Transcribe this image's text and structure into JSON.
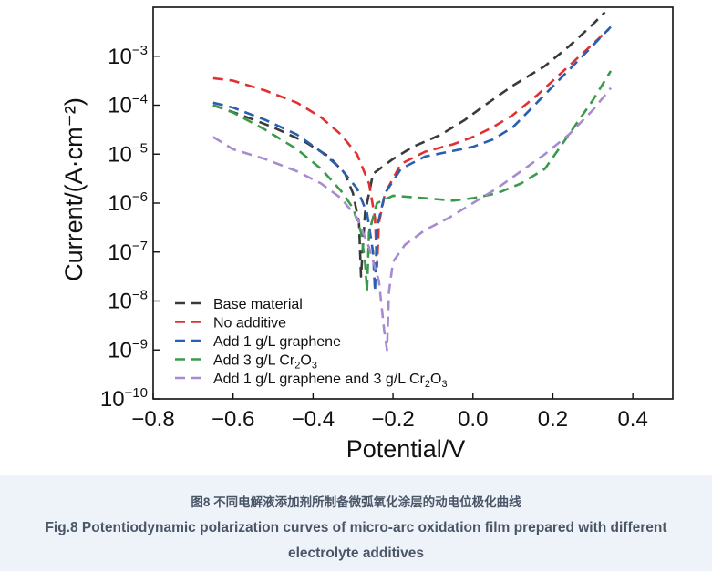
{
  "caption": {
    "cn": "图8 不同电解液添加剂所制备微弧氧化涂层的动电位极化曲线",
    "en": "Fig.8 Potentiodynamic polarization curves of micro-arc oxidation film prepared with different electrolyte additives"
  },
  "chart_data": {
    "type": "line",
    "title": "",
    "xlabel": "Potential/V",
    "ylabel": "Current/(A·cm⁻²)",
    "xlim": [
      -0.8,
      0.5
    ],
    "ylim_log10": [
      -10,
      -2
    ],
    "y_scale": "log",
    "x_ticks": [
      "−0.8",
      "−0.6",
      "−0.4",
      "−0.2",
      "0.0",
      "0.2",
      "0.4"
    ],
    "y_ticks": [
      {
        "base": "10",
        "exp": "−3",
        "value": -3
      },
      {
        "base": "10",
        "exp": "−4",
        "value": -4
      },
      {
        "base": "10",
        "exp": "−5",
        "value": -5
      },
      {
        "base": "10",
        "exp": "−6",
        "value": -6
      },
      {
        "base": "10",
        "exp": "−7",
        "value": -7
      },
      {
        "base": "10",
        "exp": "−8",
        "value": -8
      },
      {
        "base": "10",
        "exp": "−9",
        "value": -9
      },
      {
        "base": "10",
        "exp": "−10",
        "value": -10
      }
    ],
    "grid": false,
    "legend_position": "bottom-left",
    "line_style": "dashed",
    "series": [
      {
        "name": "Base material",
        "color": "#3a3a3a",
        "x": [
          -0.65,
          -0.58,
          -0.5,
          -0.42,
          -0.36,
          -0.32,
          -0.3,
          -0.285,
          -0.28,
          -0.27,
          -0.25,
          -0.2,
          -0.15,
          -0.08,
          -0.02,
          0.03,
          0.1,
          0.18,
          0.24,
          0.3,
          0.33
        ],
        "log_i": [
          -4.0,
          -4.2,
          -4.45,
          -4.75,
          -5.05,
          -5.4,
          -5.8,
          -6.4,
          -7.5,
          -6.2,
          -5.4,
          -5.1,
          -4.85,
          -4.6,
          -4.3,
          -4.0,
          -3.6,
          -3.2,
          -2.8,
          -2.35,
          -2.1
        ]
      },
      {
        "name": "No additive",
        "color": "#e03030",
        "x": [
          -0.65,
          -0.6,
          -0.52,
          -0.44,
          -0.38,
          -0.33,
          -0.29,
          -0.26,
          -0.245,
          -0.24,
          -0.235,
          -0.22,
          -0.18,
          -0.12,
          -0.05,
          0.0,
          0.05,
          0.1,
          0.16,
          0.22,
          0.28,
          0.34
        ],
        "log_i": [
          -3.45,
          -3.5,
          -3.7,
          -3.95,
          -4.25,
          -4.6,
          -5.0,
          -5.6,
          -6.3,
          -7.3,
          -6.4,
          -5.8,
          -5.2,
          -4.95,
          -4.8,
          -4.65,
          -4.45,
          -4.2,
          -3.8,
          -3.35,
          -2.9,
          -2.45
        ]
      },
      {
        "name": "Add 1 g/L graphene",
        "color": "#2a5fb0",
        "x": [
          -0.65,
          -0.6,
          -0.52,
          -0.44,
          -0.38,
          -0.33,
          -0.29,
          -0.265,
          -0.25,
          -0.245,
          -0.24,
          -0.22,
          -0.18,
          -0.12,
          -0.06,
          0.0,
          0.05,
          0.1,
          0.16,
          0.22,
          0.28,
          0.345
        ],
        "log_i": [
          -3.95,
          -4.05,
          -4.3,
          -4.6,
          -4.95,
          -5.3,
          -5.7,
          -6.2,
          -7.0,
          -7.8,
          -6.5,
          -5.8,
          -5.3,
          -5.05,
          -4.95,
          -4.85,
          -4.7,
          -4.45,
          -3.95,
          -3.45,
          -2.95,
          -2.4
        ]
      },
      {
        "name": "Add 3 g/L Cr2O3",
        "color": "#3a9a4a",
        "x": [
          -0.65,
          -0.6,
          -0.52,
          -0.44,
          -0.38,
          -0.33,
          -0.3,
          -0.28,
          -0.27,
          -0.265,
          -0.26,
          -0.24,
          -0.2,
          -0.12,
          -0.05,
          0.0,
          0.06,
          0.12,
          0.18,
          0.24,
          0.3,
          0.345
        ],
        "log_i": [
          -4.0,
          -4.15,
          -4.5,
          -4.9,
          -5.3,
          -5.75,
          -6.1,
          -6.6,
          -7.2,
          -7.8,
          -6.6,
          -6.0,
          -5.85,
          -5.9,
          -5.95,
          -5.9,
          -5.8,
          -5.6,
          -5.3,
          -4.6,
          -3.9,
          -3.3
        ]
      },
      {
        "name": "Add 1 g/L graphene and 3 g/L Cr2O3",
        "color": "#a88ad0",
        "x": [
          -0.65,
          -0.6,
          -0.52,
          -0.44,
          -0.38,
          -0.33,
          -0.29,
          -0.26,
          -0.235,
          -0.222,
          -0.215,
          -0.21,
          -0.2,
          -0.17,
          -0.12,
          -0.06,
          0.0,
          0.06,
          0.12,
          0.18,
          0.24,
          0.3,
          0.345
        ],
        "log_i": [
          -4.65,
          -4.9,
          -5.1,
          -5.35,
          -5.6,
          -5.9,
          -6.3,
          -6.9,
          -7.6,
          -8.6,
          -9.0,
          -7.8,
          -7.2,
          -6.85,
          -6.55,
          -6.3,
          -6.0,
          -5.7,
          -5.35,
          -5.0,
          -4.6,
          -4.1,
          -3.65
        ]
      }
    ]
  }
}
